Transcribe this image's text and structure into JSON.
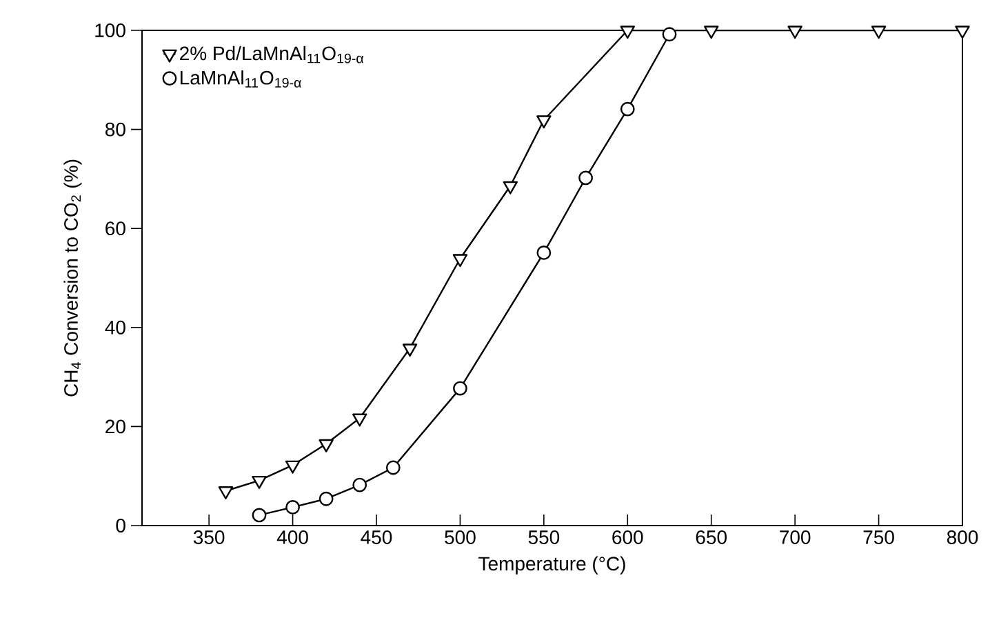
{
  "chart_data": {
    "type": "line",
    "xlabel": "Temperature (°C)",
    "ylabel": "CH$_{4}$ Conversion to CO$_{2}$ (%)",
    "xlim": [
      310,
      800
    ],
    "xticks": [
      350,
      400,
      450,
      500,
      550,
      600,
      650,
      700,
      750,
      800
    ],
    "ylim": [
      0,
      100
    ],
    "yticks": [
      0,
      20,
      40,
      60,
      80,
      100
    ],
    "legend": "top left",
    "line_style": "solid",
    "series": [
      {
        "name": "2% Pd/LaMnAl$_{11}$O$_{19-α}$",
        "color": "#000000",
        "marker": "triangle",
        "x": [
          360,
          380,
          400,
          420,
          440,
          470,
          500,
          530,
          550,
          600,
          650,
          700,
          750,
          800
        ],
        "values": [
          7.0,
          9.1,
          12.2,
          16.5,
          21.7,
          35.8,
          53.9,
          68.6,
          81.9,
          100,
          100,
          100,
          100,
          100
        ]
      },
      {
        "name": "LaMnAl$_{11}$O$_{19-α}$",
        "color": "#000000",
        "marker": "circle",
        "x": [
          380,
          400,
          420,
          440,
          460,
          500,
          550,
          575,
          600,
          625
        ],
        "values": [
          2.1,
          3.7,
          5.4,
          8.2,
          11.7,
          27.7,
          55.1,
          70.2,
          84.1,
          99.2
        ]
      }
    ]
  }
}
